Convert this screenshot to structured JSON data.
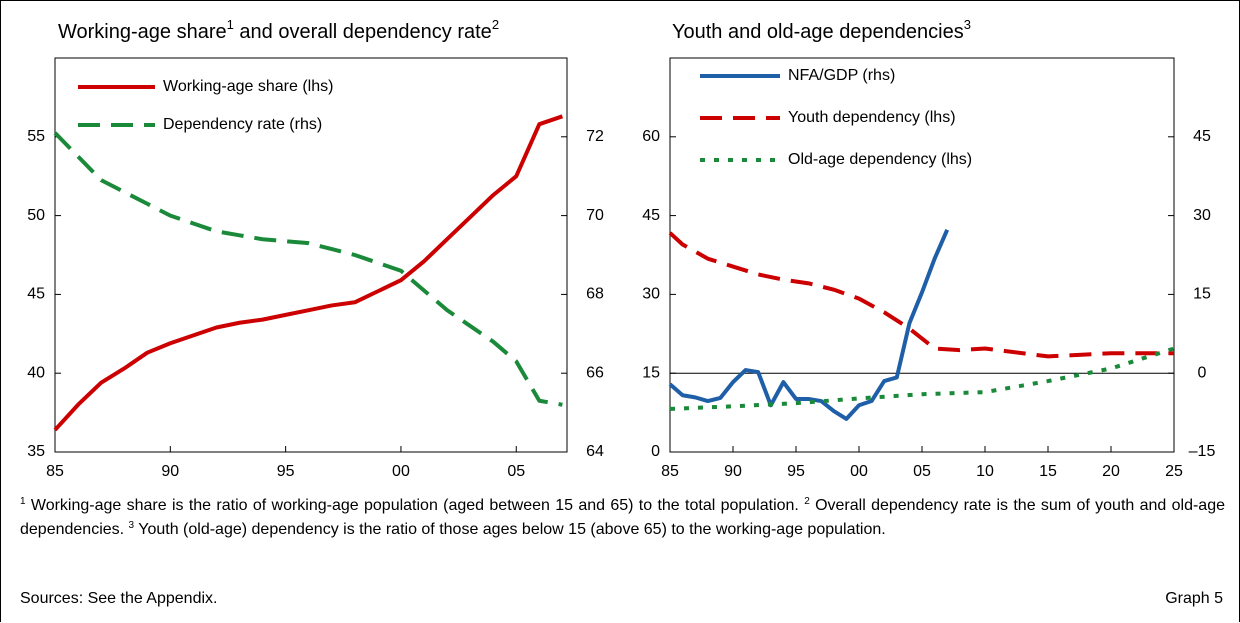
{
  "chart_data": [
    {
      "type": "line",
      "title": [
        "Working-age share",
        "1",
        " and overall dependency rate",
        "2"
      ],
      "legend": "upper left",
      "x": [
        1985,
        1986,
        1987,
        1988,
        1989,
        1990,
        1991,
        1992,
        1993,
        1994,
        1995,
        1996,
        1997,
        1998,
        1999,
        2000,
        2001,
        2002,
        2003,
        2004,
        2005,
        2006,
        2007
      ],
      "xlim": [
        1985,
        2007.2
      ],
      "xticks": [
        {
          "value": 1985,
          "label": "85"
        },
        {
          "value": 1990,
          "label": "90"
        },
        {
          "value": 1995,
          "label": "95"
        },
        {
          "value": 2000,
          "label": "00"
        },
        {
          "value": 2005,
          "label": "05"
        }
      ],
      "ylim": [
        35,
        60
      ],
      "yticks": [
        35,
        40,
        45,
        50,
        55
      ],
      "y2lim": [
        64,
        74
      ],
      "y2ticks": [
        64,
        66,
        68,
        70,
        72
      ],
      "series": [
        {
          "name": "Working-age share (lhs)",
          "color": "#cc0000",
          "style": "solid",
          "values": [
            36.4,
            38.0,
            39.4,
            40.3,
            41.3,
            41.9,
            42.4,
            42.9,
            43.2,
            43.4,
            43.7,
            44.0,
            44.3,
            44.5,
            45.2,
            45.9,
            47.1,
            48.5,
            49.9,
            51.3,
            52.5,
            55.8,
            56.3
          ]
        },
        {
          "name": "Dependency rate (rhs)",
          "color": "#1a8a3a",
          "style": "dash",
          "axis": "y2",
          "values": [
            72.1,
            71.5,
            70.9,
            70.6,
            70.3,
            70.0,
            69.8,
            69.6,
            69.5,
            69.4,
            69.35,
            69.3,
            69.15,
            69.0,
            68.8,
            68.6,
            68.1,
            67.6,
            67.2,
            66.8,
            66.3,
            65.3,
            65.2
          ]
        }
      ]
    },
    {
      "type": "line",
      "title": [
        "Youth and old-age dependencies",
        "3"
      ],
      "legend": "upper left",
      "xlim": [
        1985,
        2025
      ],
      "xticks": [
        {
          "value": 1985,
          "label": "85"
        },
        {
          "value": 1990,
          "label": "90"
        },
        {
          "value": 1995,
          "label": "95"
        },
        {
          "value": 2000,
          "label": "00"
        },
        {
          "value": 2005,
          "label": "05"
        },
        {
          "value": 2010,
          "label": "10"
        },
        {
          "value": 2015,
          "label": "15"
        },
        {
          "value": 2020,
          "label": "20"
        },
        {
          "value": 2025,
          "label": "25"
        }
      ],
      "ylim": [
        0,
        75
      ],
      "yticks": [
        0,
        15,
        30,
        45,
        60
      ],
      "y2lim": [
        -15,
        60
      ],
      "y2ticks": [
        {
          "value": -15,
          "label": "–15"
        },
        0,
        15,
        30,
        45
      ],
      "series": [
        {
          "name": "NFA/GDP (rhs)",
          "color": "#1f5fa8",
          "style": "solid",
          "axis": "y2",
          "x": [
            1985,
            1986,
            1987,
            1988,
            1989,
            1990,
            1991,
            1992,
            1993,
            1994,
            1995,
            1996,
            1997,
            1998,
            1999,
            2000,
            2001,
            2002,
            2003,
            2004,
            2005,
            2006,
            2007
          ],
          "values": [
            -2.1,
            -4.2,
            -4.6,
            -5.3,
            -4.7,
            -1.7,
            0.6,
            0.2,
            -6.1,
            -1.7,
            -4.9,
            -4.9,
            -5.3,
            -7.2,
            -8.7,
            -6.1,
            -5.3,
            -1.5,
            -0.8,
            9.5,
            15.4,
            21.8,
            27.3
          ]
        },
        {
          "name": "Youth dependency (lhs)",
          "color": "#cc0000",
          "style": "dash",
          "x": [
            1985,
            1986,
            1988,
            1990,
            1992,
            1994,
            1996,
            1998,
            2000,
            2002,
            2004,
            2006,
            2008,
            2010,
            2015,
            2020,
            2025
          ],
          "values": [
            41.7,
            39.5,
            36.8,
            35.3,
            33.8,
            32.8,
            32.1,
            30.9,
            29.2,
            26.6,
            23.5,
            19.7,
            19.4,
            19.7,
            18.2,
            18.8,
            18.8
          ]
        },
        {
          "name": "Old-age dependency (lhs)",
          "color": "#1a8a3a",
          "style": "dot",
          "x": [
            1985,
            1990,
            1995,
            2000,
            2005,
            2010,
            2015,
            2020,
            2025
          ],
          "values": [
            8.2,
            8.7,
            9.3,
            10.2,
            11.0,
            11.4,
            13.5,
            15.9,
            19.7
          ]
        }
      ]
    }
  ],
  "footnotes": [
    {
      "mark": "1",
      "text": " Working-age share is the ratio of working-age population (aged between 15 and 65) to the total population. "
    },
    {
      "mark": "2",
      "text": " Overall dependency rate is the sum of youth and old-age dependencies. "
    },
    {
      "mark": "3",
      "text": " Youth (old-age) dependency is the ratio of those ages below 15 (above 65) to the working-age population."
    }
  ],
  "source": "Sources: See the Appendix.",
  "graph_label": "Graph 5"
}
